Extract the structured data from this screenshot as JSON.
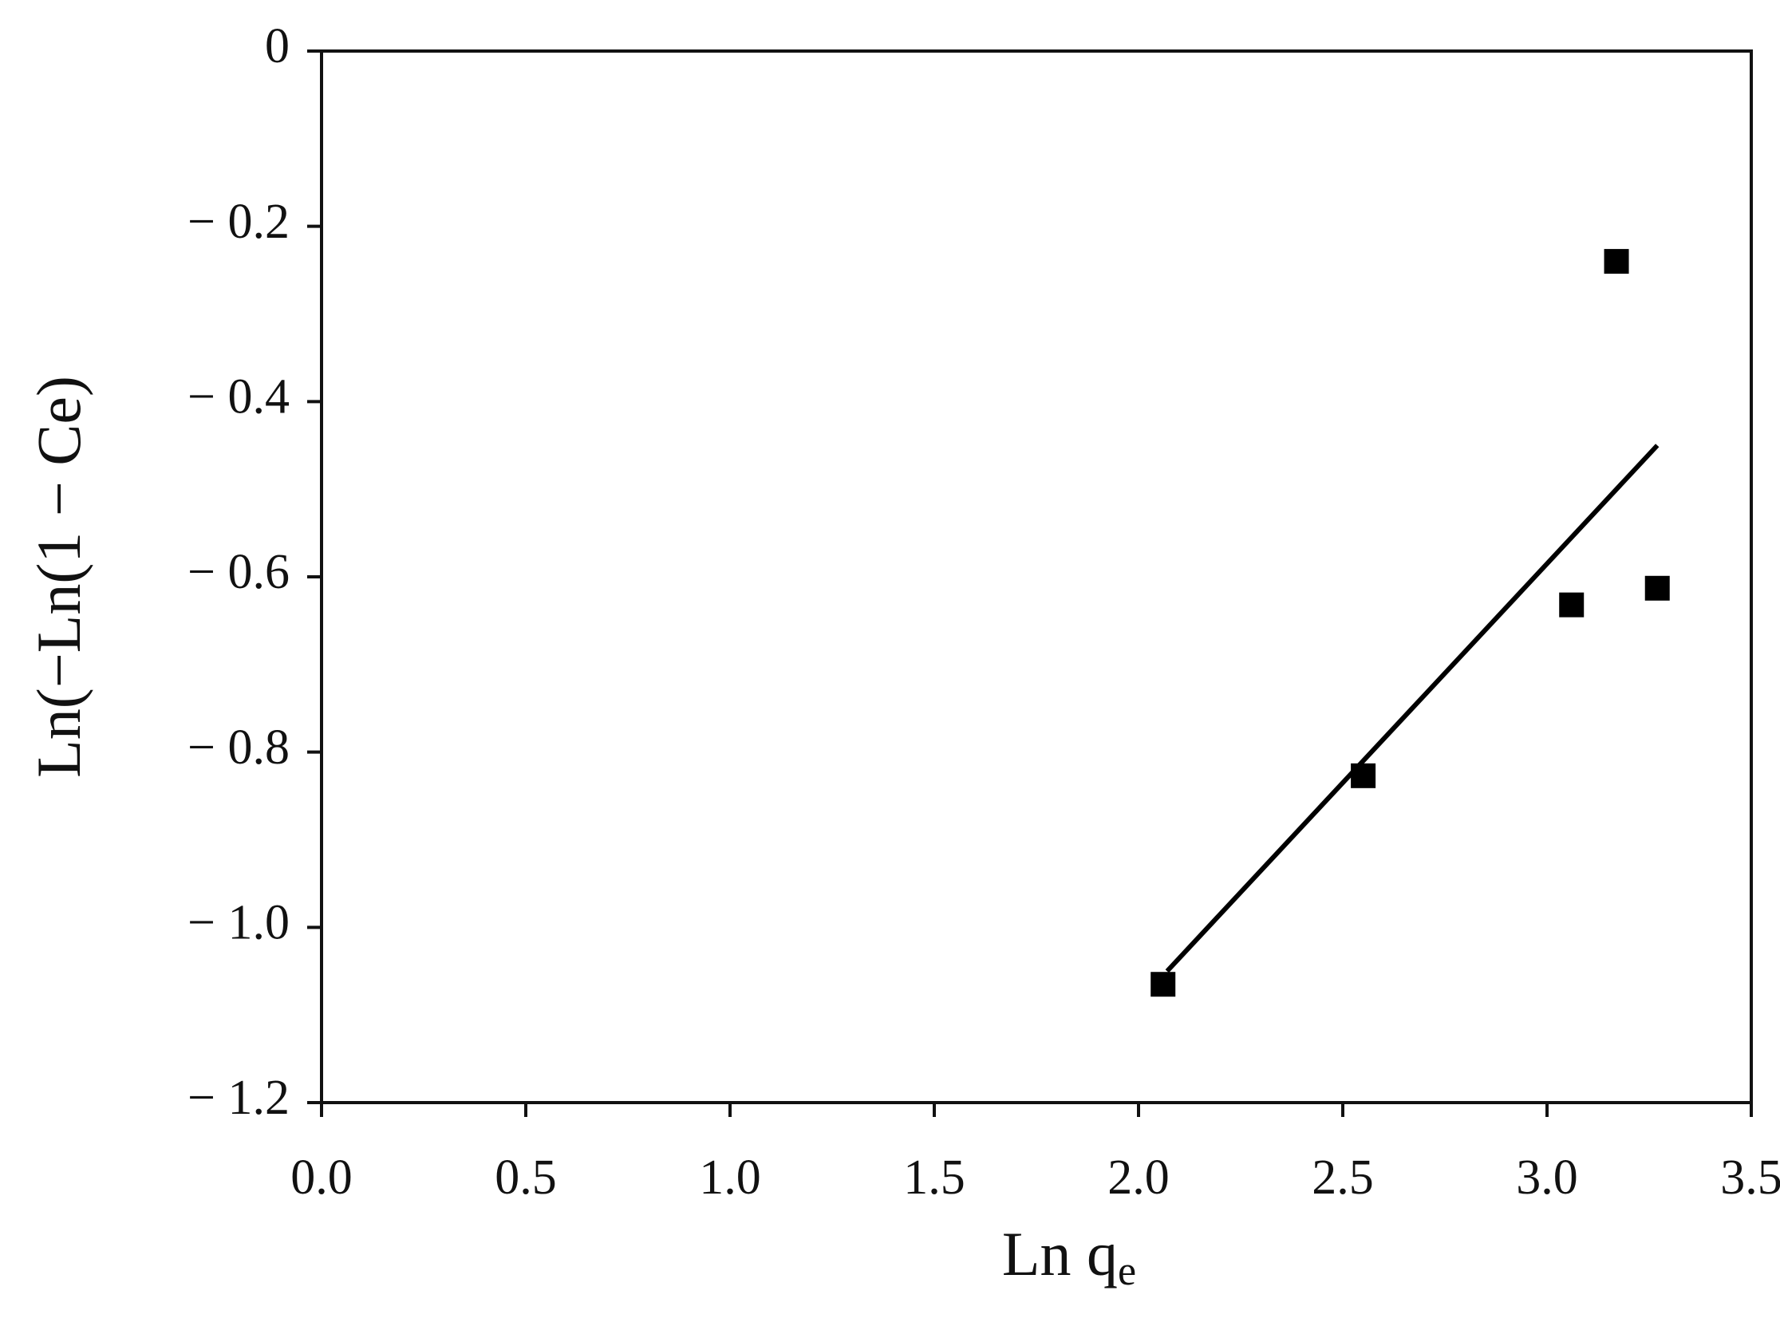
{
  "chart_data": {
    "type": "scatter",
    "xlabel": {
      "main": "Ln q",
      "sub": "e"
    },
    "ylabel": "Ln(−Ln(1 − Ce)",
    "series": [
      {
        "color": "#000000",
        "mode": "markers",
        "x": [
          2.06,
          2.55,
          3.06,
          3.17,
          3.27
        ],
        "values": [
          -1.065,
          -0.827,
          -0.632,
          -0.24,
          -0.613
        ]
      },
      {
        "color": "#000000",
        "mode": "line",
        "x": [
          2.07,
          3.27
        ],
        "values": [
          -1.05,
          -0.45
        ]
      }
    ],
    "xlim": [
      0,
      3.5
    ],
    "xticks": [
      {
        "value": 0,
        "label": "0.0"
      },
      0.5,
      {
        "value": 1,
        "label": "1.0"
      },
      1.5,
      {
        "value": 2,
        "label": "2.0"
      },
      2.5,
      {
        "value": 3,
        "label": "3.0"
      },
      3.5
    ],
    "ylim": [
      -1.2,
      0
    ],
    "yticks": [
      {
        "value": -1.2,
        "label": "− 1.2"
      },
      {
        "value": -1,
        "label": "− 1.0"
      },
      {
        "value": -0.8,
        "label": "− 0.8"
      },
      {
        "value": -0.6,
        "label": "− 0.6"
      },
      {
        "value": -0.4,
        "label": "− 0.4"
      },
      {
        "value": -0.2,
        "label": "− 0.2"
      },
      0
    ],
    "grid": false
  }
}
